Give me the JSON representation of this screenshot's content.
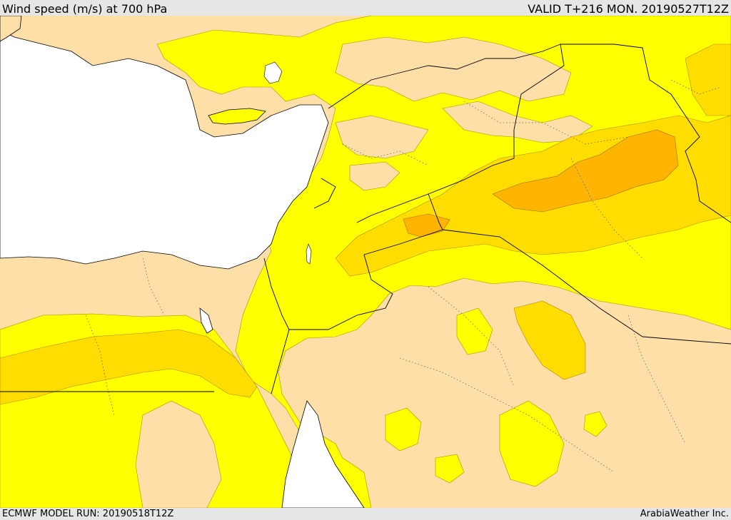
{
  "header": {
    "title": "Wind speed (m/s) at 700 hPa",
    "valid": "VALID T+216 MON. 20190527T12Z"
  },
  "footer": {
    "model_run": "ECMWF MODEL RUN: 20190518T12Z",
    "credit": "ArabiaWeather Inc."
  },
  "colors": {
    "land_calm": "#ffdfa8",
    "wind_low": "#ffff00",
    "wind_mid": "#ffdd00",
    "wind_high": "#ffb400",
    "water": "#ffffff",
    "border": "#000000"
  }
}
